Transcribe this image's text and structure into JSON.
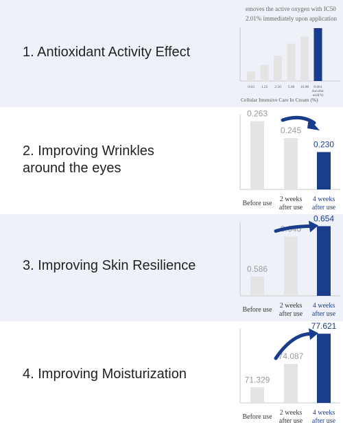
{
  "sections": [
    {
      "heading": "1. Antioxidant Activity Effect",
      "note_line1": "emoves the active oxygen with IC50",
      "note_line2": "2.01% immediately upon application"
    },
    {
      "heading": "2. Improving Wrinkles\naround the eyes"
    },
    {
      "heading": "3. Improving Skin Resilience"
    },
    {
      "heading": "4. Improving Moisturization"
    }
  ],
  "colors": {
    "accent": "#1a3c8c",
    "bar": "#e4e4e4",
    "panel_alt": "#eef2f8"
  },
  "chart_data": [
    {
      "type": "bar",
      "title": "",
      "xlabel": "Cellular Intensive Care In Cream (%)",
      "ylabel": "",
      "categories": [
        "0.63",
        "1.25",
        "2.50",
        "5.00",
        "10.00",
        "0.001 Ascorbic acid(%)"
      ],
      "values": [
        14,
        24,
        38,
        56,
        66,
        79
      ],
      "ylim": [
        0,
        80
      ],
      "highlight_index": 5,
      "grid": false
    },
    {
      "type": "bar",
      "title": "",
      "xlabel": "",
      "ylabel": "",
      "categories": [
        "Before use",
        "2 weeks after use",
        "4 weeks after use"
      ],
      "values": [
        0.263,
        0.245,
        0.23
      ],
      "value_labels": [
        "0.263",
        "0.245",
        "0.230"
      ],
      "ylim": [
        0.19,
        0.27
      ],
      "highlight_index": 2,
      "arrow": "down",
      "grid": false
    },
    {
      "type": "bar",
      "title": "",
      "xlabel": "",
      "ylabel": "",
      "categories": [
        "Before use",
        "2 weeks after use",
        "4 weeks after use"
      ],
      "values": [
        0.586,
        0.64,
        0.654
      ],
      "value_labels": [
        "0.586",
        "0.640",
        "0.654"
      ],
      "ylim": [
        0.56,
        0.66
      ],
      "highlight_index": 2,
      "arrow": "up",
      "grid": false
    },
    {
      "type": "bar",
      "title": "",
      "xlabel": "",
      "ylabel": "",
      "categories": [
        "Before use",
        "2 weeks after use",
        "4 weeks after use"
      ],
      "values": [
        71.329,
        74.087,
        77.621
      ],
      "value_labels": [
        "71.329",
        "74.087",
        "77.621"
      ],
      "ylim": [
        69.5,
        78.2
      ],
      "highlight_index": 2,
      "arrow": "up",
      "grid": false
    }
  ]
}
